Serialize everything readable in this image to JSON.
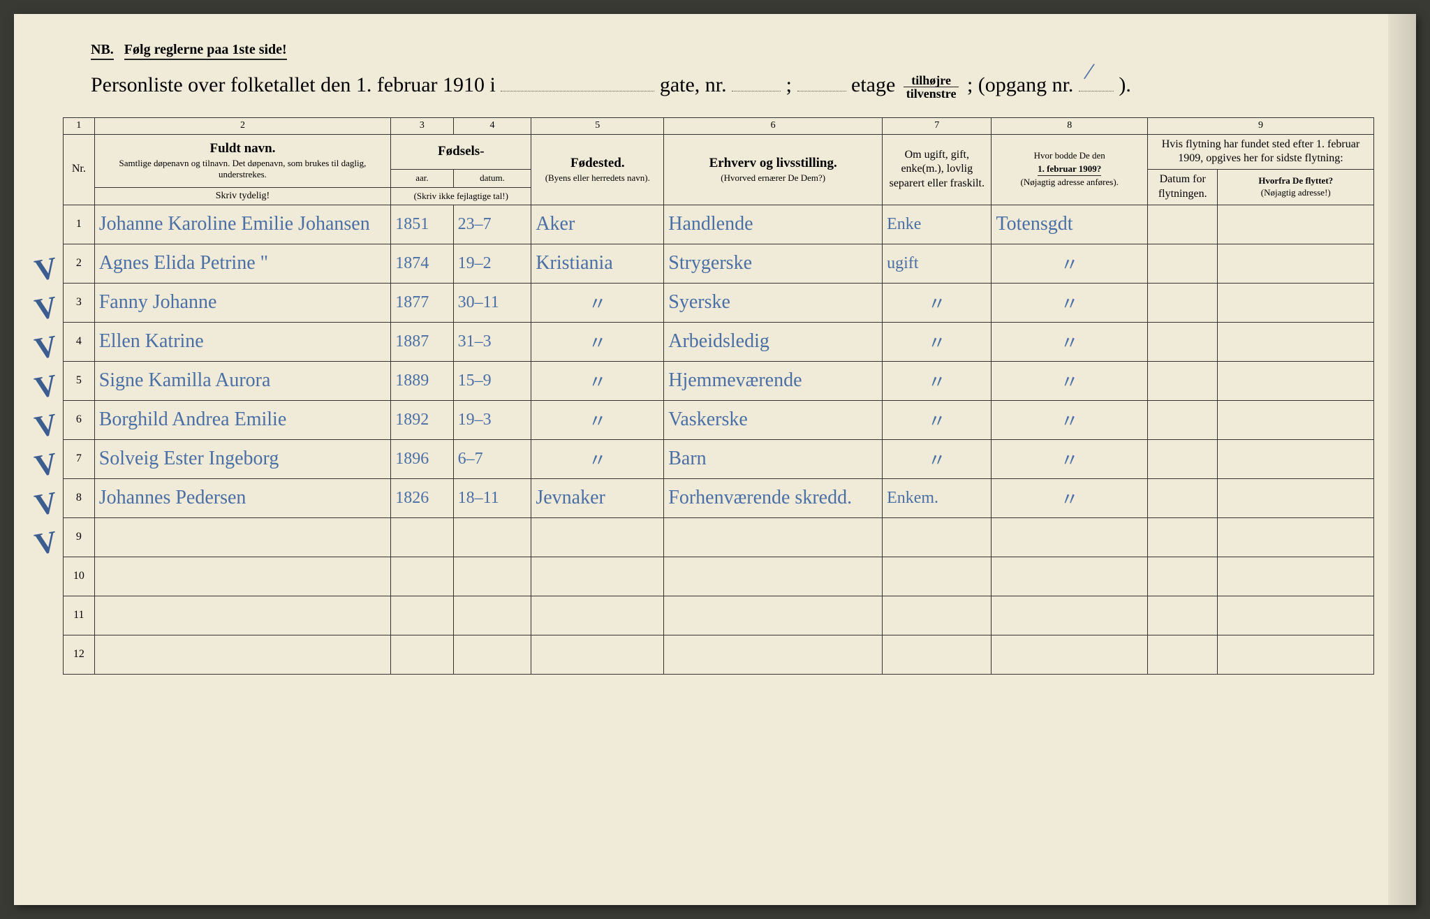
{
  "nb": {
    "prefix": "NB.",
    "text": "Følg reglerne paa 1ste side!"
  },
  "title": {
    "lead": "Personliste over folketallet den 1. februar 1910 i",
    "gate": "gate, nr.",
    "semi1": ";",
    "etage": "etage",
    "frac_top": "tilhøjre",
    "frac_bot": "tilvenstre",
    "semi2": ";",
    "opgang": "(opgang nr.",
    "close": ")."
  },
  "colnums": [
    "1",
    "2",
    "3",
    "4",
    "5",
    "6",
    "7",
    "8",
    "9"
  ],
  "headers": {
    "nr": "Nr.",
    "name_big": "Fuldt navn.",
    "name_small": "Samtlige døpenavn og tilnavn. Det døpenavn, som brukes til daglig, understrekes.",
    "fodsels": "Fødsels-",
    "aar": "aar.",
    "datum": "datum.",
    "skriv_tal": "(Skriv ikke fejlagtige tal!)",
    "fodested_big": "Fødested.",
    "fodested_small": "(Byens eller herredets navn).",
    "erhverv_big": "Erhverv og livsstilling.",
    "erhverv_small": "(Hvorved ernærer De Dem?)",
    "marital": "Om ugift, gift, enke(m.), lovlig separert eller fraskilt.",
    "addr1909_a": "Hvor bodde De den",
    "addr1909_b": "1. februar 1909?",
    "addr1909_c": "(Nøjagtig adresse anføres).",
    "move_top": "Hvis flytning har fundet sted efter 1. februar 1909, opgives her for sidste flytning:",
    "move_datum": "Datum for flytningen.",
    "move_from_a": "Hvorfra De flyttet?",
    "move_from_b": "(Nøjagtig adresse!)",
    "skriv_tydelig": "Skriv tydelig!"
  },
  "rows": [
    {
      "n": "1",
      "name": "Johanne Karoline Emilie Johansen",
      "aar": "1851",
      "datum": "23–7",
      "sted": "Aker",
      "erhverv": "Handlende",
      "mar": "Enke",
      "addr": "Totensgdt",
      "d": "",
      "f": ""
    },
    {
      "n": "2",
      "name": "Agnes Elida Petrine    \"",
      "aar": "1874",
      "datum": "19–2",
      "sted": "Kristiania",
      "erhverv": "Strygerske",
      "mar": "ugift",
      "addr": "\"",
      "d": "",
      "f": ""
    },
    {
      "n": "3",
      "name": "Fanny Johanne",
      "aar": "1877",
      "datum": "30–11",
      "sted": "\"",
      "erhverv": "Syerske",
      "mar": "\"",
      "addr": "\"",
      "d": "",
      "f": ""
    },
    {
      "n": "4",
      "name": "Ellen Katrine",
      "aar": "1887",
      "datum": "31–3",
      "sted": "\"",
      "erhverv": "Arbeidsledig",
      "mar": "\"",
      "addr": "\"",
      "d": "",
      "f": ""
    },
    {
      "n": "5",
      "name": "Signe Kamilla Aurora",
      "aar": "1889",
      "datum": "15–9",
      "sted": "\"",
      "erhverv": "Hjemmeværende",
      "mar": "\"",
      "addr": "\"",
      "d": "",
      "f": ""
    },
    {
      "n": "6",
      "name": "Borghild Andrea Emilie",
      "aar": "1892",
      "datum": "19–3",
      "sted": "\"",
      "erhverv": "Vaskerske",
      "mar": "\"",
      "addr": "\"",
      "d": "",
      "f": ""
    },
    {
      "n": "7",
      "name": "Solveig Ester Ingeborg",
      "aar": "1896",
      "datum": "6–7",
      "sted": "\"",
      "erhverv": "Barn",
      "mar": "\"",
      "addr": "\"",
      "d": "",
      "f": ""
    },
    {
      "n": "8",
      "name": "Johannes Pedersen",
      "aar": "1826",
      "datum": "18–11",
      "sted": "Jevnaker",
      "erhverv": "Forhenværende skredd.",
      "mar": "Enkem.",
      "addr": "\"",
      "d": "",
      "f": ""
    },
    {
      "n": "9",
      "name": "",
      "aar": "",
      "datum": "",
      "sted": "",
      "erhverv": "",
      "mar": "",
      "addr": "",
      "d": "",
      "f": ""
    },
    {
      "n": "10",
      "name": "",
      "aar": "",
      "datum": "",
      "sted": "",
      "erhverv": "",
      "mar": "",
      "addr": "",
      "d": "",
      "f": ""
    },
    {
      "n": "11",
      "name": "",
      "aar": "",
      "datum": "",
      "sted": "",
      "erhverv": "",
      "mar": "",
      "addr": "",
      "d": "",
      "f": ""
    },
    {
      "n": "12",
      "name": "",
      "aar": "",
      "datum": "",
      "sted": "",
      "erhverv": "",
      "mar": "",
      "addr": "",
      "d": "",
      "f": ""
    }
  ],
  "checks": [
    true,
    true,
    true,
    true,
    true,
    true,
    true,
    true,
    false,
    false,
    false,
    false
  ],
  "colors": {
    "paper": "#f0ead8",
    "ink": "#1a1a1a",
    "hand": "#4a6fa5",
    "border": "#333333"
  }
}
